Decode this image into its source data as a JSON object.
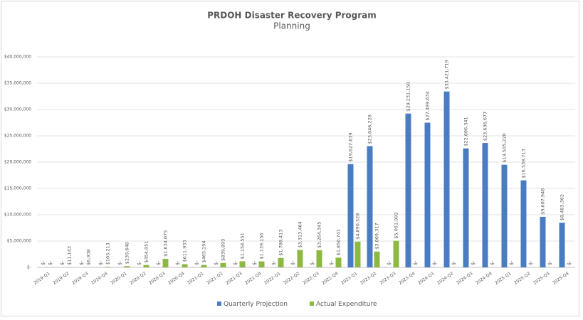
{
  "chart_data": {
    "type": "bar",
    "title": "PRDOH Disaster Recovery Program",
    "subtitle": "Planning",
    "categories": [
      "2019-Q1",
      "2019-Q2",
      "2019-Q3",
      "2019-Q4",
      "2020-Q1",
      "2020-Q2",
      "2020-Q3",
      "2020-Q4",
      "2021-Q1",
      "2021-Q2",
      "2021-Q3",
      "2021-Q4",
      "2022-Q1",
      "2022-Q2",
      "2022-Q3",
      "2022-Q4",
      "2023-Q1",
      "2023-Q2",
      "2023-Q3",
      "2023-Q4",
      "2024-Q1",
      "2024-Q2",
      "2024-Q3",
      "2024-Q4",
      "2025-Q1",
      "2025-Q2",
      "2025-Q3",
      "2025-Q4"
    ],
    "series": [
      {
        "name": "Quarterly Projection",
        "color": "#4a7cc2",
        "values": [
          0,
          0,
          0,
          0,
          0,
          0,
          0,
          0,
          0,
          0,
          0,
          0,
          0,
          0,
          0,
          0,
          19627639,
          23046228,
          0,
          29231150,
          27499634,
          33421719,
          22606341,
          23636677,
          19505220,
          16539713,
          9607948,
          8483362
        ],
        "value_labels": [
          "$-",
          "$-",
          "$-",
          "$-",
          "$-",
          "$-",
          "$-",
          "$-",
          "$-",
          "$-",
          "$-",
          "$-",
          "$-",
          "$-",
          "$-",
          "$-",
          "$19,627,639",
          "$23,046,228",
          "$-",
          "$29,231,150",
          "$27,499,634",
          "$33,421,719",
          "$22,606,341",
          "$23,636,677",
          "$19,505,220",
          "$16,539,713",
          "$9,607,948",
          "$8,483,362"
        ]
      },
      {
        "name": "Actual Expenditure",
        "color": "#8db842",
        "values": [
          0,
          11143,
          6938,
          103213,
          239648,
          454051,
          1634075,
          611933,
          465194,
          839893,
          1158551,
          1139156,
          1788413,
          3313464,
          3264345,
          1850741,
          4890528,
          3009317,
          5051992,
          0,
          0,
          0,
          0,
          0,
          0,
          0,
          0,
          0
        ],
        "value_labels": [
          "$-",
          "$11,143",
          "$6,938",
          "$103,213",
          "$239,648",
          "$454,051",
          "$1,634,075",
          "$611,933",
          "$465,194",
          "$839,893",
          "$1,158,551",
          "$1,139,156",
          "$1,788,413",
          "$3,313,464",
          "$3,264,345",
          "$1,850,741",
          "$4,890,528",
          "$3,009,317",
          "$5,051,992",
          "$-",
          "$-",
          "$-",
          "$-",
          "$-",
          "$-",
          "$-",
          "$-",
          "$-"
        ]
      }
    ],
    "ylim": [
      0,
      40000000
    ],
    "yticks": [
      {
        "value": 0,
        "label": "$-"
      },
      {
        "value": 5000000,
        "label": "$5,000,000"
      },
      {
        "value": 10000000,
        "label": "$10,000,000"
      },
      {
        "value": 15000000,
        "label": "$15,000,000"
      },
      {
        "value": 20000000,
        "label": "$20,000,000"
      },
      {
        "value": 25000000,
        "label": "$25,000,000"
      },
      {
        "value": 30000000,
        "label": "$30,000,000"
      },
      {
        "value": 35000000,
        "label": "$35,000,000"
      },
      {
        "value": 40000000,
        "label": "$40,000,000"
      }
    ],
    "grid": true,
    "legend": "bottom"
  }
}
